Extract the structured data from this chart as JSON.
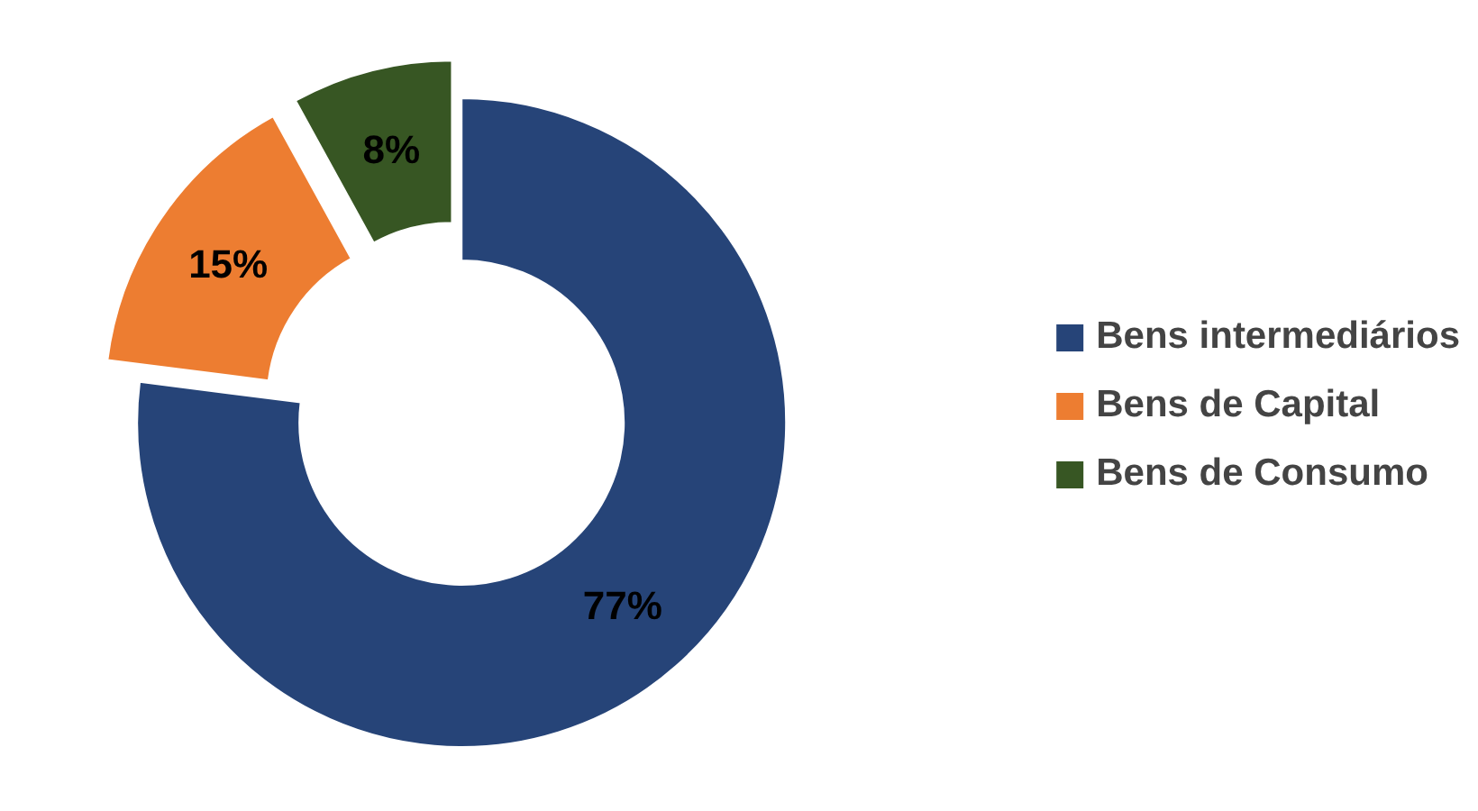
{
  "chart_data": {
    "type": "donut",
    "categories": [
      "Bens intermediários",
      "Bens de Capital",
      "Bens de Consumo"
    ],
    "values": [
      77,
      15,
      8
    ],
    "colors": [
      "#264478",
      "#ed7d31",
      "#375623"
    ],
    "value_labels": [
      "77%",
      "15%",
      "8%"
    ],
    "legend": "right"
  }
}
